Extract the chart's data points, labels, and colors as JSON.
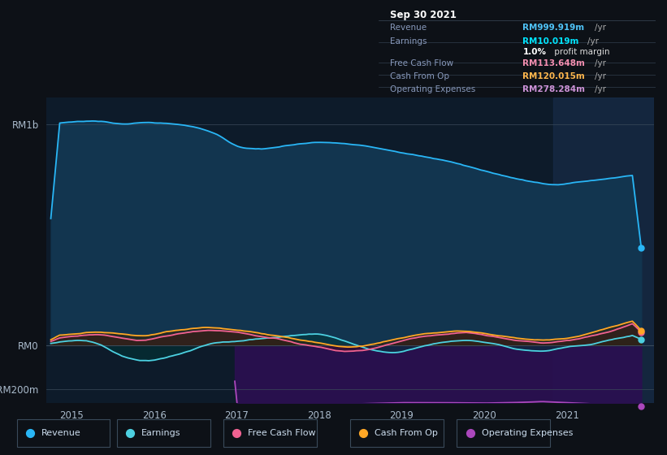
{
  "bg_color": "#0d1117",
  "plot_bg_color": "#0d1b2a",
  "title_box": {
    "date": "Sep 30 2021",
    "rows": [
      {
        "label": "Revenue",
        "value": "RM999.919m",
        "unit": "/yr",
        "value_color": "#4fc3f7"
      },
      {
        "label": "Earnings",
        "value": "RM10.019m",
        "unit": "/yr",
        "value_color": "#00e5ff"
      },
      {
        "label": "",
        "value": "1.0%",
        "unit": " profit margin",
        "value_color": "#ffffff"
      },
      {
        "label": "Free Cash Flow",
        "value": "RM113.648m",
        "unit": "/yr",
        "value_color": "#f48fb1"
      },
      {
        "label": "Cash From Op",
        "value": "RM120.015m",
        "unit": "/yr",
        "value_color": "#ffb74d"
      },
      {
        "label": "Operating Expenses",
        "value": "RM278.284m",
        "unit": "/yr",
        "value_color": "#ce93d8"
      }
    ]
  },
  "y_labels": [
    "RM1b",
    "RM0",
    "-RM200m"
  ],
  "y_ticks": [
    1000,
    0,
    -200
  ],
  "x_ticks": [
    2015,
    2016,
    2017,
    2018,
    2019,
    2020,
    2021
  ],
  "ylim": [
    -260,
    1120
  ],
  "xlim": [
    2014.7,
    2022.05
  ],
  "highlight_start": 2020.83,
  "highlight_end": 2022.05,
  "series": {
    "revenue": {
      "color": "#29b6f6",
      "label": "Revenue"
    },
    "earnings": {
      "color": "#4dd0e1",
      "label": "Earnings"
    },
    "free_cash_flow": {
      "color": "#f06292",
      "label": "Free Cash Flow"
    },
    "cash_from_op": {
      "color": "#ffa726",
      "label": "Cash From Op"
    },
    "operating_expenses": {
      "color": "#ab47bc",
      "label": "Operating Expenses"
    }
  },
  "legend": [
    {
      "label": "Revenue",
      "color": "#29b6f6"
    },
    {
      "label": "Earnings",
      "color": "#4dd0e1"
    },
    {
      "label": "Free Cash Flow",
      "color": "#f06292"
    },
    {
      "label": "Cash From Op",
      "color": "#ffa726"
    },
    {
      "label": "Operating Expenses",
      "color": "#ab47bc"
    }
  ]
}
